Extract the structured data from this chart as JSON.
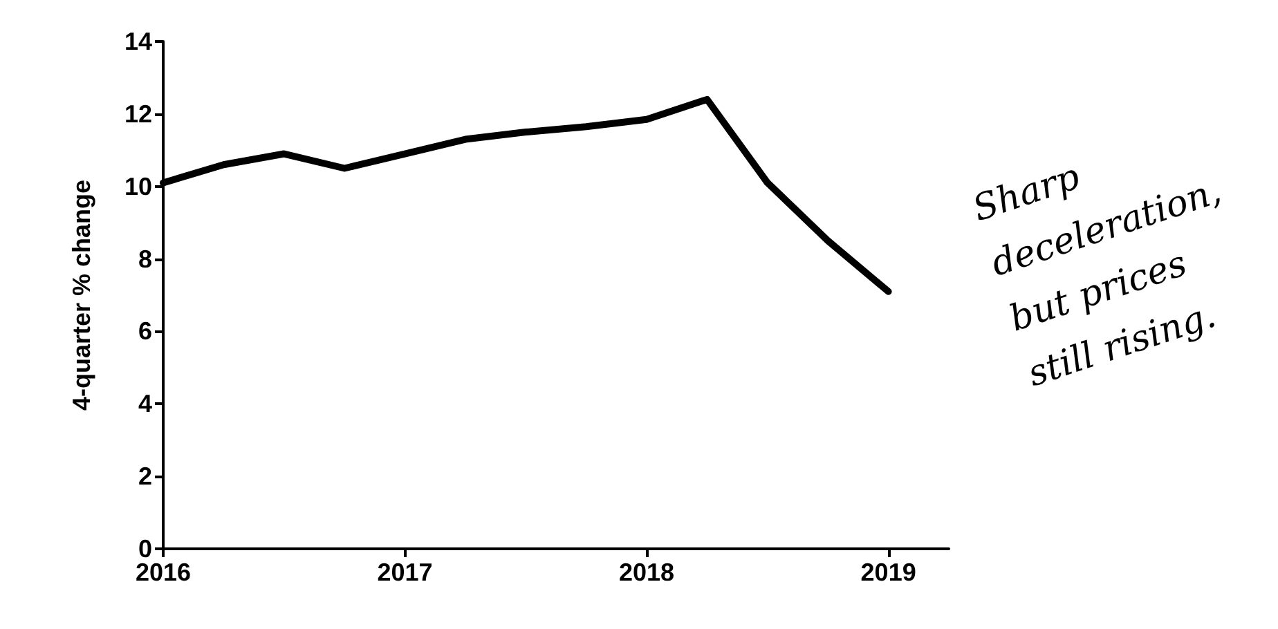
{
  "chart_data": {
    "type": "line",
    "ylabel": "4-quarter % change",
    "x": [
      2016,
      2016.25,
      2016.5,
      2016.75,
      2017,
      2017.25,
      2017.5,
      2017.75,
      2018,
      2018.25,
      2018.5,
      2018.75,
      2019
    ],
    "series": [
      {
        "color": "#000000",
        "values": [
          10.1,
          10.6,
          10.9,
          10.5,
          10.9,
          11.3,
          11.5,
          11.65,
          11.85,
          12.4,
          10.1,
          8.5,
          7.1
        ]
      }
    ],
    "xlim": [
      2016,
      2019.25
    ],
    "xticks": [
      2016,
      2017,
      2018,
      2019
    ],
    "ylim": [
      0,
      14
    ],
    "yticks": [
      0,
      2,
      4,
      6,
      8,
      10,
      12,
      14
    ],
    "grid": false,
    "marker": "none",
    "line_style": "solid",
    "annotations": [
      "Sharp\ndeceleration,\nbut prices\nstill rising."
    ]
  }
}
